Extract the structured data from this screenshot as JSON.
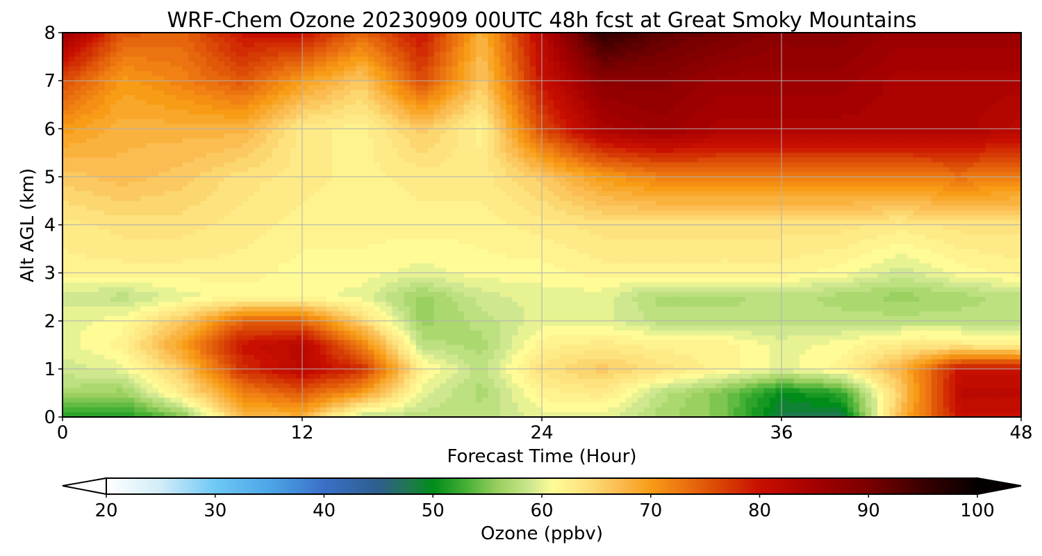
{
  "chart_data": {
    "type": "heatmap",
    "title": "WRF-Chem Ozone  20230909 00UTC 48h fcst at Great Smoky Mountains",
    "xlabel": "Forecast Time (Hour)",
    "ylabel": "Alt AGL (km)",
    "xlim": [
      0,
      48
    ],
    "ylim": [
      0,
      8
    ],
    "x_ticks": [
      0,
      12,
      24,
      36,
      48
    ],
    "y_ticks": [
      0,
      1,
      2,
      3,
      4,
      5,
      6,
      7,
      8
    ],
    "grid": true,
    "x": [
      0,
      3,
      6,
      9,
      12,
      15,
      18,
      21,
      24,
      27,
      30,
      33,
      36,
      39,
      42,
      45,
      48
    ],
    "y": [
      0,
      0.5,
      1,
      1.5,
      2,
      2.5,
      3,
      4,
      5,
      6,
      7,
      8
    ],
    "z": [
      [
        52,
        51,
        55,
        67,
        68,
        58,
        58,
        58,
        60,
        60,
        57,
        55,
        48,
        48,
        68,
        80,
        80
      ],
      [
        57,
        56,
        63,
        72,
        75,
        70,
        60,
        57,
        62,
        63,
        58,
        55,
        50,
        52,
        66,
        82,
        82
      ],
      [
        59,
        60,
        66,
        78,
        82,
        78,
        62,
        58,
        64,
        66,
        64,
        62,
        60,
        62,
        68,
        80,
        80
      ],
      [
        60,
        62,
        70,
        80,
        82,
        72,
        58,
        57,
        62,
        63,
        62,
        62,
        60,
        61,
        63,
        63,
        62
      ],
      [
        60,
        61,
        66,
        74,
        74,
        65,
        56,
        58,
        60,
        60,
        58,
        58,
        58,
        58,
        58,
        58,
        58
      ],
      [
        59,
        58,
        60,
        61,
        61,
        60,
        56,
        59,
        60,
        60,
        57,
        57,
        58,
        57,
        56,
        57,
        58
      ],
      [
        62,
        62,
        62,
        62,
        61,
        61,
        60,
        61,
        61,
        62,
        62,
        62,
        62,
        61,
        59,
        61,
        62
      ],
      [
        63,
        64,
        64,
        63,
        62,
        62,
        62,
        62,
        63,
        64,
        64,
        64,
        64,
        64,
        63,
        64,
        64
      ],
      [
        66,
        67,
        66,
        64,
        63,
        62,
        63,
        63,
        66,
        70,
        72,
        72,
        72,
        72,
        72,
        73,
        72
      ],
      [
        70,
        68,
        68,
        68,
        63,
        62,
        66,
        62,
        76,
        84,
        86,
        84,
        84,
        84,
        84,
        84,
        82
      ],
      [
        76,
        70,
        72,
        75,
        70,
        66,
        76,
        66,
        80,
        88,
        88,
        86,
        86,
        86,
        84,
        84,
        84
      ],
      [
        86,
        75,
        74,
        80,
        80,
        74,
        80,
        68,
        82,
        96,
        92,
        90,
        88,
        88,
        86,
        86,
        86
      ]
    ],
    "colorbar": {
      "label": "Ozone  (ppbv)",
      "min": 20,
      "max": 100,
      "ticks": [
        "20",
        "30",
        "40",
        "50",
        "60",
        "70",
        "80",
        "90",
        "100"
      ],
      "extend": "both",
      "colormap": [
        [
          20,
          "#ffffff"
        ],
        [
          25,
          "#d2ecf8"
        ],
        [
          30,
          "#6ec8f5"
        ],
        [
          35,
          "#4da6e6"
        ],
        [
          40,
          "#3a6fc8"
        ],
        [
          45,
          "#2e5e8c"
        ],
        [
          48,
          "#1e7a4c"
        ],
        [
          50,
          "#008c1a"
        ],
        [
          53,
          "#45b035"
        ],
        [
          56,
          "#9ad060"
        ],
        [
          59,
          "#cfe890"
        ],
        [
          61,
          "#fffb96"
        ],
        [
          64,
          "#fde27e"
        ],
        [
          67,
          "#fbbd52"
        ],
        [
          70,
          "#f89c16"
        ],
        [
          73,
          "#ec7410"
        ],
        [
          76,
          "#db4a06"
        ],
        [
          80,
          "#c80f00"
        ],
        [
          85,
          "#a50000"
        ],
        [
          90,
          "#7a0000"
        ],
        [
          95,
          "#3a0000"
        ],
        [
          100,
          "#050000"
        ]
      ]
    }
  }
}
